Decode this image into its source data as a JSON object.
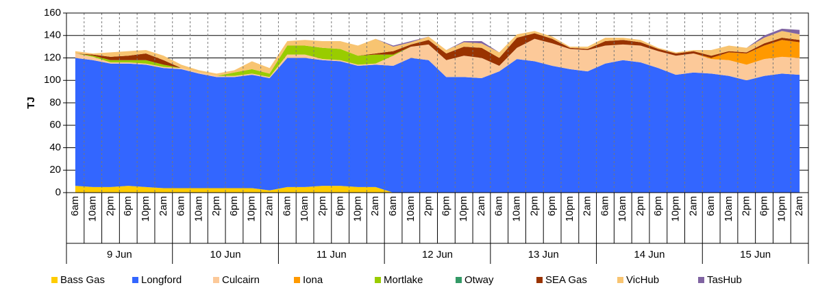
{
  "chart_data": {
    "type": "stacked_area",
    "y_label": "TJ",
    "categories": [
      "6am",
      "10am",
      "2pm",
      "6pm",
      "10pm",
      "2am",
      "6am",
      "10am",
      "2pm",
      "6pm",
      "10pm",
      "2am",
      "6am",
      "10am",
      "2pm",
      "6pm",
      "10pm",
      "2am",
      "6am",
      "10am",
      "2pm",
      "6pm",
      "10pm",
      "2am",
      "6am",
      "10am",
      "2pm",
      "6pm",
      "10pm",
      "2am",
      "6am",
      "10am",
      "2pm",
      "6pm",
      "10pm",
      "2am",
      "6am",
      "10am",
      "2pm",
      "6pm",
      "10pm",
      "2am"
    ],
    "day_labels": [
      "9 Jun",
      "10 Jun",
      "11 Jun",
      "12 Jun",
      "13 Jun",
      "14 Jun",
      "15 Jun"
    ],
    "ylim": [
      0,
      160
    ],
    "yticks": [
      0,
      20,
      40,
      60,
      80,
      100,
      120,
      140,
      160
    ],
    "grid": true,
    "series": [
      {
        "name": "Bass Gas",
        "color": "#ffcc00",
        "values": [
          6,
          5,
          5,
          6,
          5,
          4,
          4,
          4,
          4,
          4,
          4,
          2,
          5,
          5,
          6,
          6,
          5,
          5,
          0,
          0,
          0,
          0,
          0,
          0,
          0,
          0,
          0,
          0,
          0,
          0,
          0,
          0,
          0,
          0,
          0,
          0,
          0,
          0,
          0,
          0,
          0,
          0
        ]
      },
      {
        "name": "Longford",
        "color": "#3366ff",
        "values": [
          114,
          113,
          110,
          109,
          109,
          107,
          106,
          102,
          99,
          99,
          101,
          100,
          115,
          115,
          112,
          111,
          108,
          109,
          113,
          120,
          118,
          103,
          103,
          102,
          108,
          119,
          117,
          113,
          110,
          108,
          115,
          118,
          116,
          111,
          105,
          107,
          106,
          104,
          100,
          104,
          106,
          105
        ]
      },
      {
        "name": "Culcairn",
        "color": "#fcc999",
        "values": [
          4,
          3,
          1,
          1,
          1,
          1,
          1,
          1,
          1,
          1,
          1,
          1,
          3,
          3,
          1,
          1,
          1,
          1,
          9,
          10,
          14,
          15,
          19,
          18,
          5,
          10,
          20,
          20,
          18,
          19,
          16,
          14,
          15,
          15,
          17,
          17,
          13,
          14,
          14,
          15,
          15,
          15
        ]
      },
      {
        "name": "Iona",
        "color": "#ff9900",
        "values": [
          0,
          0,
          0,
          0,
          0,
          0,
          0,
          0,
          0,
          0,
          0,
          0,
          0,
          0,
          0,
          0,
          0,
          0,
          0,
          0,
          0,
          0,
          0,
          0,
          0,
          0,
          0,
          0,
          0,
          0,
          0,
          0,
          0,
          0,
          0,
          0,
          1,
          7,
          10,
          12,
          15,
          14
        ]
      },
      {
        "name": "Mortlake",
        "color": "#99cc00",
        "values": [
          0,
          1,
          2,
          2,
          3,
          2,
          0,
          0,
          0,
          3,
          4,
          3,
          8,
          8,
          10,
          10,
          8,
          8,
          1,
          0,
          0,
          0,
          0,
          0,
          0,
          0,
          0,
          0,
          0,
          0,
          0,
          0,
          0,
          0,
          0,
          0,
          0,
          0,
          0,
          0,
          0,
          0
        ]
      },
      {
        "name": "Otway",
        "color": "#339966",
        "values": [
          0,
          0,
          0,
          0,
          0,
          0,
          0,
          0,
          0,
          0,
          0,
          0,
          0,
          0,
          0,
          0,
          0,
          0,
          0,
          0,
          0,
          0,
          0,
          0,
          0,
          0,
          0,
          0,
          0,
          0,
          0,
          0,
          0,
          0,
          0,
          0,
          0,
          0,
          0,
          0,
          0,
          0
        ]
      },
      {
        "name": "SEA Gas",
        "color": "#993300",
        "values": [
          0,
          1,
          3,
          4,
          6,
          4,
          0,
          0,
          0,
          0,
          0,
          0,
          0,
          0,
          0,
          0,
          0,
          1,
          3,
          2,
          4,
          6,
          8,
          9,
          7,
          9,
          5,
          4,
          1,
          1,
          4,
          4,
          3,
          2,
          2,
          2,
          2,
          1,
          1,
          2,
          2,
          2
        ]
      },
      {
        "name": "VicHub",
        "color": "#f8c471",
        "values": [
          2,
          1,
          4,
          4,
          3,
          4,
          3,
          2,
          2,
          2,
          7,
          5,
          4,
          5,
          6,
          7,
          9,
          13,
          4,
          2,
          3,
          3,
          4,
          4,
          5,
          3,
          2,
          2,
          1,
          2,
          3,
          2,
          2,
          1,
          1,
          1,
          5,
          5,
          4,
          5,
          6,
          5
        ]
      },
      {
        "name": "TasHub",
        "color": "#8064a2",
        "values": [
          0,
          0,
          0,
          0,
          0,
          0,
          0,
          0,
          0,
          0,
          0,
          0,
          0,
          0,
          0,
          0,
          0,
          0,
          1,
          1,
          0,
          0,
          1,
          2,
          0,
          0,
          0,
          0,
          0,
          0,
          0,
          0,
          0,
          0,
          0,
          0,
          0,
          0,
          0,
          2,
          2,
          4
        ]
      }
    ]
  }
}
